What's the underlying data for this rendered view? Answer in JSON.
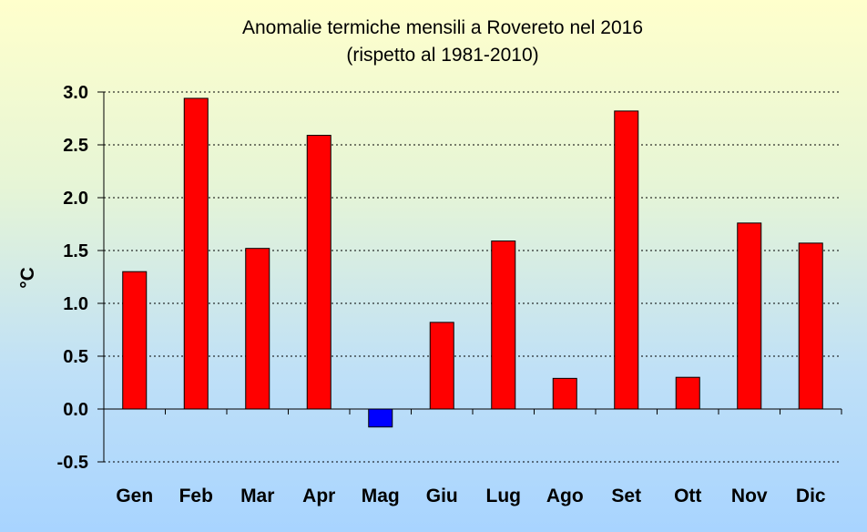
{
  "chart_data": {
    "type": "bar",
    "title": "Anomalie termiche mensili a Rovereto nel 2016",
    "subtitle": "(rispetto al 1981-2010)",
    "xlabel": "",
    "ylabel": "°C",
    "ylim": [
      -0.5,
      3.0
    ],
    "yticks": [
      "3.0",
      "2.5",
      "2.0",
      "1.5",
      "1.0",
      "0.5",
      "0.0",
      "-0.5"
    ],
    "ytick_values": [
      3.0,
      2.5,
      2.0,
      1.5,
      1.0,
      0.5,
      0.0,
      -0.5
    ],
    "categories": [
      "Gen",
      "Feb",
      "Mar",
      "Apr",
      "Mag",
      "Giu",
      "Lug",
      "Ago",
      "Set",
      "Ott",
      "Nov",
      "Dic"
    ],
    "values": [
      1.3,
      2.94,
      1.52,
      2.59,
      -0.17,
      0.82,
      1.59,
      0.29,
      2.82,
      0.3,
      1.76,
      1.57
    ],
    "grid": true,
    "colors": {
      "positive": "#ff0000",
      "negative": "#0000ff",
      "border": "#000000",
      "grid": "#000000"
    }
  }
}
